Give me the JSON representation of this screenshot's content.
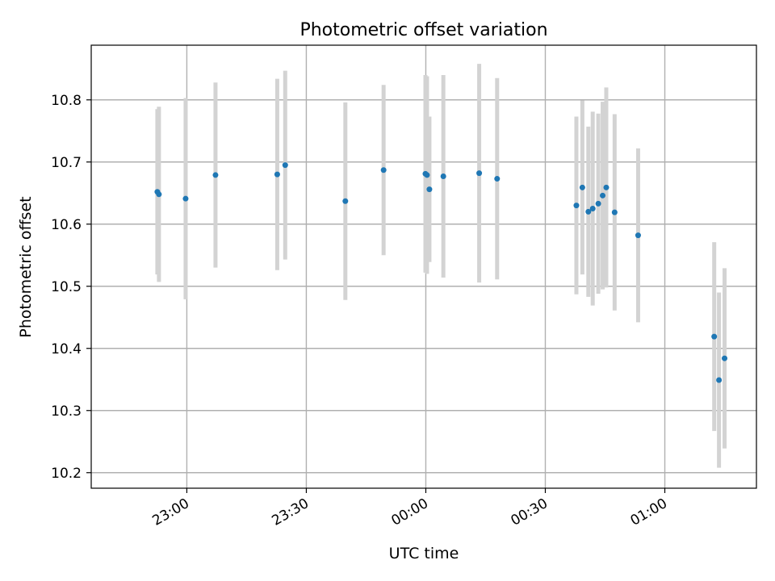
{
  "chart_data": {
    "type": "scatter",
    "title": "Photometric offset variation",
    "xlabel": "UTC time",
    "ylabel": "Photometric offset",
    "x_ticks": [
      "23:00",
      "23:30",
      "00:00",
      "00:30",
      "01:00"
    ],
    "x_tick_minutes": [
      -60,
      -30,
      0,
      30,
      60
    ],
    "xlim_minutes": [
      -84,
      83
    ],
    "y_ticks": [
      10.2,
      10.3,
      10.4,
      10.5,
      10.6,
      10.7,
      10.8
    ],
    "ylim": [
      10.175,
      10.888
    ],
    "grid": true,
    "colors": {
      "point": "#1f77b4",
      "errorbar": "#d3d3d3",
      "grid": "#b0b0b0"
    },
    "points": [
      {
        "time": "22:52:36",
        "y": 10.652,
        "yerr": 0.133
      },
      {
        "time": "22:53:00",
        "y": 10.648,
        "yerr": 0.141
      },
      {
        "time": "22:59:42",
        "y": 10.641,
        "yerr": 0.162
      },
      {
        "time": "23:07:12",
        "y": 10.679,
        "yerr": 0.149
      },
      {
        "time": "23:22:42",
        "y": 10.68,
        "yerr": 0.154
      },
      {
        "time": "23:24:42",
        "y": 10.695,
        "yerr": 0.152
      },
      {
        "time": "23:39:48",
        "y": 10.637,
        "yerr": 0.159
      },
      {
        "time": "23:49:24",
        "y": 10.687,
        "yerr": 0.137
      },
      {
        "time": "23:59:54",
        "y": 10.681,
        "yerr": 0.159
      },
      {
        "time": "00:00:18",
        "y": 10.679,
        "yerr": 0.159
      },
      {
        "time": "00:00:54",
        "y": 10.656,
        "yerr": 0.117
      },
      {
        "time": "00:04:24",
        "y": 10.677,
        "yerr": 0.163
      },
      {
        "time": "00:13:24",
        "y": 10.682,
        "yerr": 0.176
      },
      {
        "time": "00:17:54",
        "y": 10.673,
        "yerr": 0.162
      },
      {
        "time": "00:37:48",
        "y": 10.63,
        "yerr": 0.143
      },
      {
        "time": "00:39:18",
        "y": 10.659,
        "yerr": 0.14
      },
      {
        "time": "00:40:48",
        "y": 10.62,
        "yerr": 0.137
      },
      {
        "time": "00:41:54",
        "y": 10.625,
        "yerr": 0.156
      },
      {
        "time": "00:43:18",
        "y": 10.633,
        "yerr": 0.145
      },
      {
        "time": "00:44:24",
        "y": 10.646,
        "yerr": 0.151
      },
      {
        "time": "00:45:18",
        "y": 10.659,
        "yerr": 0.161
      },
      {
        "time": "00:47:24",
        "y": 10.619,
        "yerr": 0.158
      },
      {
        "time": "00:53:18",
        "y": 10.582,
        "yerr": 0.14
      },
      {
        "time": "01:12:24",
        "y": 10.419,
        "yerr": 0.152
      },
      {
        "time": "01:13:36",
        "y": 10.349,
        "yerr": 0.141
      },
      {
        "time": "01:15:00",
        "y": 10.384,
        "yerr": 0.145
      }
    ]
  }
}
